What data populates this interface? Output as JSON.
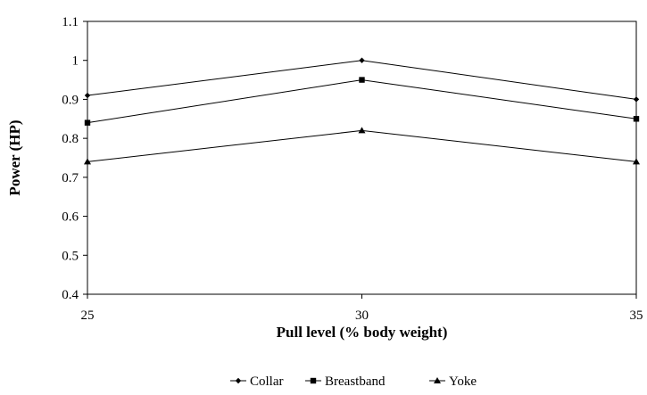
{
  "chart_data": {
    "type": "line",
    "x": [
      25,
      30,
      35
    ],
    "x_tick_labels": [
      "25",
      "30",
      "35"
    ],
    "y_tick_labels": [
      "0.4",
      "0.5",
      "0.6",
      "0.7",
      "0.8",
      "0.9",
      "1",
      "1.1"
    ],
    "xlabel": "Pull level (% body weight)",
    "ylabel": "Power (HP)",
    "ylim": [
      0.4,
      1.1
    ],
    "xlim": [
      25,
      35
    ],
    "grid": false,
    "legend_position": "bottom",
    "series": [
      {
        "name": "Collar",
        "marker": "diamond",
        "values": [
          0.91,
          1.0,
          0.9
        ]
      },
      {
        "name": "Breastband",
        "marker": "square",
        "values": [
          0.84,
          0.95,
          0.85
        ]
      },
      {
        "name": "Yoke",
        "marker": "triangle",
        "values": [
          0.74,
          0.82,
          0.74
        ]
      }
    ]
  }
}
